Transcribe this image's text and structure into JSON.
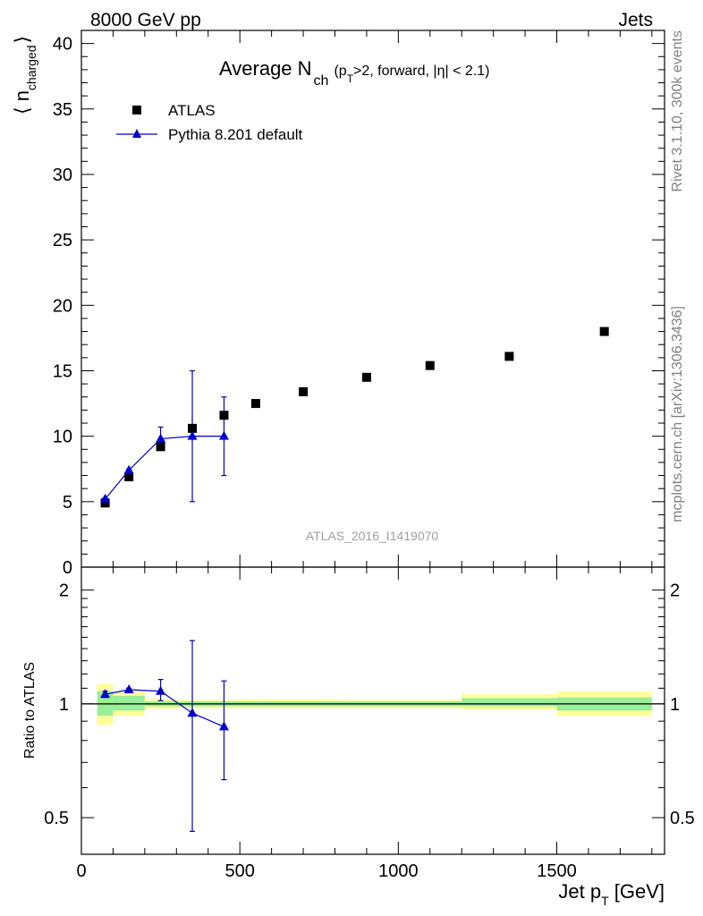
{
  "header": {
    "left": "8000 GeV pp",
    "right": "Jets"
  },
  "side_labels": {
    "rivet": "Rivet 3.1.10,  300k events",
    "mcplots": "mcplots.cern.ch [arXiv:1306.3436]"
  },
  "title": {
    "main": "Average N",
    "sub": "ch",
    "cond_a": "(p",
    "cond_sub": "T",
    "cond_b": ">2, forward, |η| < 2.1)"
  },
  "analysis_id": "ATLAS_2016_I1419070",
  "axes": {
    "ylabel_main": "⟨ n",
    "ylabel_sub": "charged",
    "ylabel_close": "⟩",
    "ratio_ylabel": "Ratio to ATLAS",
    "xlabel_a": "Jet p",
    "xlabel_sub": "T",
    "xlabel_b": " [GeV]"
  },
  "legend": [
    {
      "label": "ATLAS",
      "marker": "square",
      "color": "#000000"
    },
    {
      "label": "Pythia 8.201 default",
      "marker": "triangle",
      "color": "#0000cc"
    }
  ],
  "chart_data": {
    "type": "scatter",
    "xlim": [
      0,
      1840
    ],
    "ylim": [
      0,
      41
    ],
    "ratio_ylim": [
      0.4,
      2.3
    ],
    "ratio_log": true,
    "xticks": [
      0,
      500,
      1000,
      1500
    ],
    "yticks": [
      0,
      5,
      10,
      15,
      20,
      25,
      30,
      35,
      40
    ],
    "ratio_yticks": [
      0.5,
      1,
      2
    ],
    "legend_position": "top-left",
    "grid": false,
    "series": [
      {
        "name": "ATLAS",
        "color": "#000000",
        "marker": "square",
        "x": [
          75,
          150,
          250,
          350,
          450,
          550,
          700,
          900,
          1100,
          1350,
          1650
        ],
        "y": [
          4.9,
          6.9,
          9.2,
          10.6,
          11.6,
          12.5,
          13.4,
          14.5,
          15.4,
          16.1,
          18.0
        ]
      },
      {
        "name": "Pythia 8.201 default",
        "color": "#0000cc",
        "marker": "triangle",
        "x": [
          75,
          150,
          250,
          350,
          450
        ],
        "y": [
          5.2,
          7.4,
          9.8,
          10.0,
          10.0
        ],
        "yerr_low": [
          0.1,
          0.1,
          0.3,
          5.0,
          3.0
        ],
        "yerr_high": [
          0.1,
          0.1,
          0.9,
          5.0,
          3.0
        ]
      }
    ],
    "ratio_series": {
      "name": "Pythia 8.201 default",
      "color": "#0000cc",
      "x": [
        75,
        150,
        250,
        350,
        450
      ],
      "y": [
        1.06,
        1.09,
        1.08,
        0.945,
        0.87
      ],
      "ylo": [
        1.04,
        1.08,
        1.02,
        0.46,
        0.63
      ],
      "yhi": [
        1.08,
        1.1,
        1.16,
        1.47,
        1.15
      ]
    },
    "ratio_bands": [
      {
        "xlo": 50,
        "xhi": 100,
        "y_lo": 0.93,
        "y_hi": 1.08,
        "o_lo": 0.88,
        "o_hi": 1.13
      },
      {
        "xlo": 100,
        "xhi": 200,
        "y_lo": 0.96,
        "y_hi": 1.05,
        "o_lo": 0.93,
        "o_hi": 1.08
      },
      {
        "xlo": 200,
        "xhi": 300,
        "y_lo": 0.985,
        "y_hi": 1.015,
        "o_lo": 0.97,
        "o_hi": 1.03
      },
      {
        "xlo": 300,
        "xhi": 400,
        "y_lo": 0.985,
        "y_hi": 1.015,
        "o_lo": 0.975,
        "o_hi": 1.025
      },
      {
        "xlo": 400,
        "xhi": 500,
        "y_lo": 0.985,
        "y_hi": 1.015,
        "o_lo": 0.975,
        "o_hi": 1.025
      },
      {
        "xlo": 500,
        "xhi": 600,
        "y_lo": 0.985,
        "y_hi": 1.015,
        "o_lo": 0.975,
        "o_hi": 1.03
      },
      {
        "xlo": 600,
        "xhi": 800,
        "y_lo": 0.985,
        "y_hi": 1.015,
        "o_lo": 0.975,
        "o_hi": 1.03
      },
      {
        "xlo": 800,
        "xhi": 1000,
        "y_lo": 0.985,
        "y_hi": 1.015,
        "o_lo": 0.975,
        "o_hi": 1.025
      },
      {
        "xlo": 1000,
        "xhi": 1200,
        "y_lo": 0.985,
        "y_hi": 1.015,
        "o_lo": 0.975,
        "o_hi": 1.025
      },
      {
        "xlo": 1200,
        "xhi": 1500,
        "y_lo": 0.985,
        "y_hi": 1.035,
        "o_lo": 0.965,
        "o_hi": 1.06
      },
      {
        "xlo": 1500,
        "xhi": 1800,
        "y_lo": 0.96,
        "y_hi": 1.04,
        "o_lo": 0.93,
        "o_hi": 1.08
      }
    ]
  }
}
